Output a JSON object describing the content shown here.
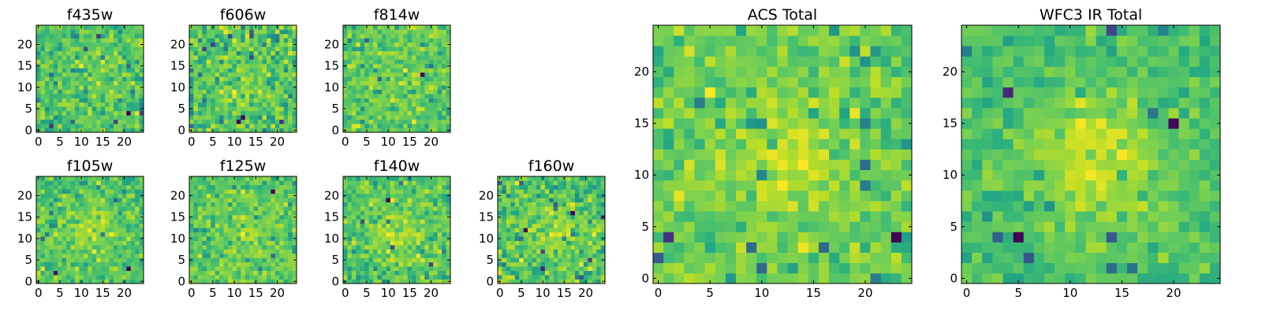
{
  "chart_data": [
    {
      "type": "heatmap",
      "title": "f435w",
      "image_size": 25,
      "xticks": [
        0,
        5,
        10,
        15,
        20
      ],
      "yticks": [
        0,
        5,
        10,
        15,
        20
      ],
      "colormap": "viridis",
      "seed": 11,
      "peak": 0.15,
      "noise": 1.0,
      "grid_step": 1
    },
    {
      "type": "heatmap",
      "title": "f606w",
      "image_size": 25,
      "xticks": [
        0,
        5,
        10,
        15,
        20
      ],
      "yticks": [
        0,
        5,
        10,
        15,
        20
      ],
      "colormap": "viridis",
      "seed": 23,
      "peak": 0.15,
      "noise": 1.0,
      "grid_step": 1
    },
    {
      "type": "heatmap",
      "title": "f814w",
      "image_size": 25,
      "xticks": [
        0,
        5,
        10,
        15,
        20
      ],
      "yticks": [
        0,
        5,
        10,
        15,
        20
      ],
      "colormap": "viridis",
      "seed": 37,
      "peak": 0.25,
      "noise": 1.0,
      "grid_step": 1
    },
    {
      "type": "heatmap",
      "title": "f105w",
      "image_size": 25,
      "xticks": [
        0,
        5,
        10,
        15,
        20
      ],
      "yticks": [
        0,
        5,
        10,
        15,
        20
      ],
      "colormap": "viridis",
      "seed": 41,
      "peak": 0.45,
      "noise": 0.9,
      "grid_step": 1
    },
    {
      "type": "heatmap",
      "title": "f125w",
      "image_size": 25,
      "xticks": [
        0,
        5,
        10,
        15,
        20
      ],
      "yticks": [
        0,
        5,
        10,
        15,
        20
      ],
      "colormap": "viridis",
      "seed": 53,
      "peak": 0.35,
      "noise": 0.9,
      "grid_step": 1
    },
    {
      "type": "heatmap",
      "title": "f140w",
      "image_size": 25,
      "xticks": [
        0,
        5,
        10,
        15,
        20
      ],
      "yticks": [
        0,
        5,
        10,
        15,
        20
      ],
      "colormap": "viridis",
      "seed": 67,
      "peak": 0.4,
      "noise": 0.9,
      "grid_step": 1
    },
    {
      "type": "heatmap",
      "title": "f160w",
      "image_size": 25,
      "xticks": [
        0,
        5,
        10,
        15,
        20
      ],
      "yticks": [
        0,
        5,
        10,
        15,
        20
      ],
      "colormap": "viridis",
      "seed": 79,
      "peak": 0.4,
      "noise": 0.9,
      "grid_step": 1
    },
    {
      "type": "heatmap",
      "title": "ACS Total",
      "image_size": 25,
      "xticks": [
        0,
        5,
        10,
        15,
        20
      ],
      "yticks": [
        0,
        5,
        10,
        15,
        20
      ],
      "colormap": "viridis",
      "seed": 91,
      "peak": 0.35,
      "noise": 0.75,
      "grid_step": 1
    },
    {
      "type": "heatmap",
      "title": "WFC3 IR Total",
      "image_size": 25,
      "xticks": [
        0,
        5,
        10,
        15,
        20
      ],
      "yticks": [
        0,
        5,
        10,
        15,
        20
      ],
      "colormap": "viridis",
      "seed": 103,
      "peak": 0.7,
      "noise": 0.55,
      "grid_step": 1
    }
  ]
}
